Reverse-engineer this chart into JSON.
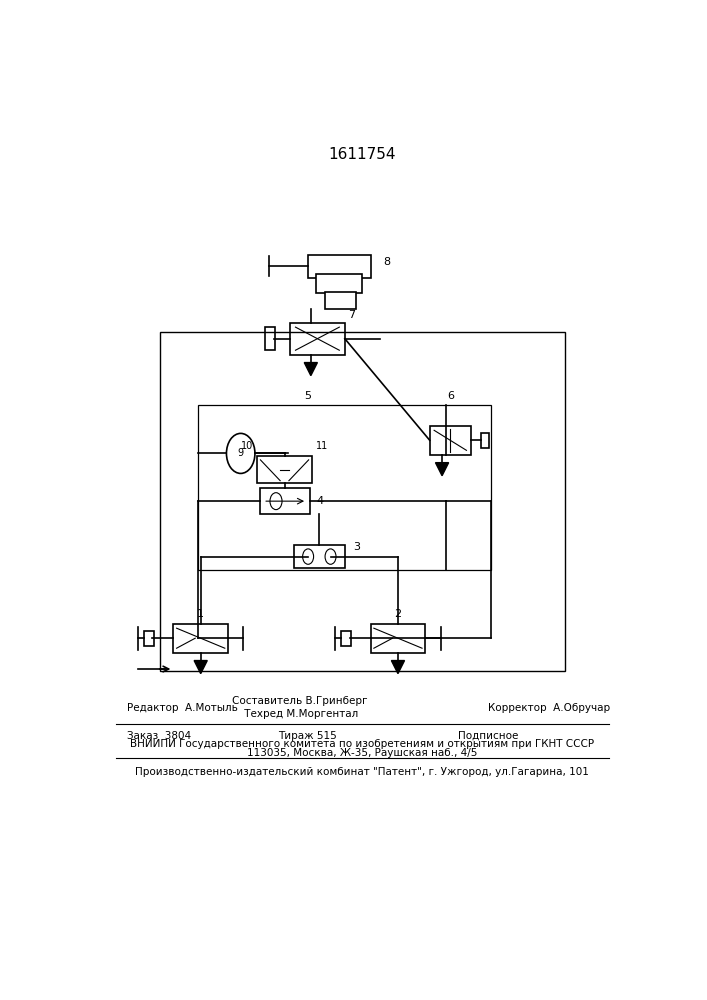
{
  "title": "1611754",
  "bg_color": "#ffffff",
  "bottom_text": {
    "line1_left": "Редактор  А.Мотыль",
    "line1_center": "Составитель В.Гринберг",
    "line1_center2": " Техред М.Моргентал",
    "line1_right": "Корректор  А.Обручар",
    "line2_left": "Заказ  3804",
    "line2_center": "Тираж 515",
    "line2_right": "Подписное",
    "line3": "ВНИИПИ Государственного комитета по изобретениям и открытиям при ГКНТ СССР",
    "line4": "113035, Москва, Ж-35, Раушская наб., 4/5",
    "line5": "Производственно-издательский комбинат \"Патент\", г. Ужгород, ул.Гагарина, 101"
  }
}
